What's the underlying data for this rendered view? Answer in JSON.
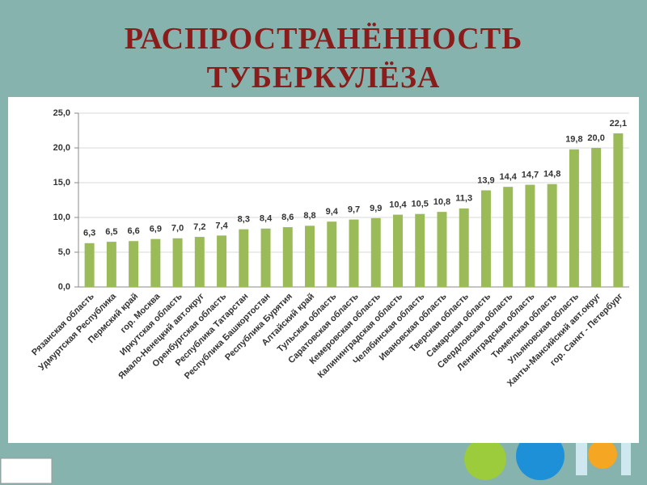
{
  "chart_data": {
    "type": "bar",
    "title": "РАСПРОСТРАНЁННОСТЬ ТУБЕРКУЛЁЗА",
    "categories": [
      "Рязанская область",
      "Удмуртская Республика",
      "Пермский край",
      "гор. Москва",
      "Иркутская область",
      "Ямало-Ненецкий авт.округ",
      "Оренбургская область",
      "Республика Татарстан",
      "Республика Башкортостан",
      "Республика Бурятия",
      "Алтайский край",
      "Тульская область",
      "Саратовская область",
      "Кемеровская область",
      "Калининградская область",
      "Челябинская область",
      "Ивановская область",
      "Тверская область",
      "Самарская область",
      "Свердловская область",
      "Ленинградская область",
      "Тюменская область",
      "Ульяновская область",
      "Ханты-Мансийский авт.округ",
      "гор. Санкт - Петербург"
    ],
    "values": [
      6.3,
      6.5,
      6.6,
      6.9,
      7.0,
      7.2,
      7.4,
      8.3,
      8.4,
      8.6,
      8.8,
      9.4,
      9.7,
      9.9,
      10.4,
      10.5,
      10.8,
      11.3,
      13.9,
      14.4,
      14.7,
      14.8,
      19.8,
      20.0,
      22.1
    ],
    "value_labels": [
      "6,3",
      "6,5",
      "6,6",
      "6,9",
      "7,0",
      "7,2",
      "7,4",
      "8,3",
      "8,4",
      "8,6",
      "8,8",
      "9,4",
      "9,7",
      "9,9",
      "10,4",
      "10,5",
      "10,8",
      "11,3",
      "13,9",
      "14,4",
      "14,7",
      "14,8",
      "19,8",
      "20,0",
      "22,1"
    ],
    "color": "#9bbb59",
    "ylim": [
      0,
      25
    ],
    "yticks": [
      {
        "value": 0,
        "label": "0,0"
      },
      {
        "value": 5,
        "label": "5,0"
      },
      {
        "value": 10,
        "label": "10,0"
      },
      {
        "value": 15,
        "label": "15,0"
      },
      {
        "value": 20,
        "label": "20,0"
      },
      {
        "value": 25,
        "label": "25,0"
      }
    ],
    "grid": true
  }
}
